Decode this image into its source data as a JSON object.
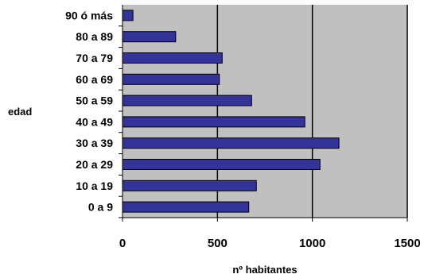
{
  "chart_data": {
    "type": "bar",
    "orientation": "horizontal",
    "title": "",
    "xlabel": "nº habitantes",
    "ylabel": "edad",
    "categories": [
      "0 a 9",
      "10 a 19",
      "20 a 29",
      "30 a 39",
      "40 a 49",
      "50 a 59",
      "60 a 69",
      "70 a 79",
      "80 a 89",
      "90 ó más"
    ],
    "values": [
      665,
      705,
      1040,
      1140,
      960,
      680,
      510,
      525,
      280,
      55
    ],
    "xlim": [
      0,
      1500
    ],
    "xticks": [
      0,
      500,
      1000,
      1500
    ],
    "grid": "vertical lines at x tick values",
    "legend": "none",
    "colors": {
      "bar_fill": "#333399",
      "bar_stroke": "#000000",
      "plot_background": "#c0c0c0",
      "gridline": "#000000"
    }
  }
}
